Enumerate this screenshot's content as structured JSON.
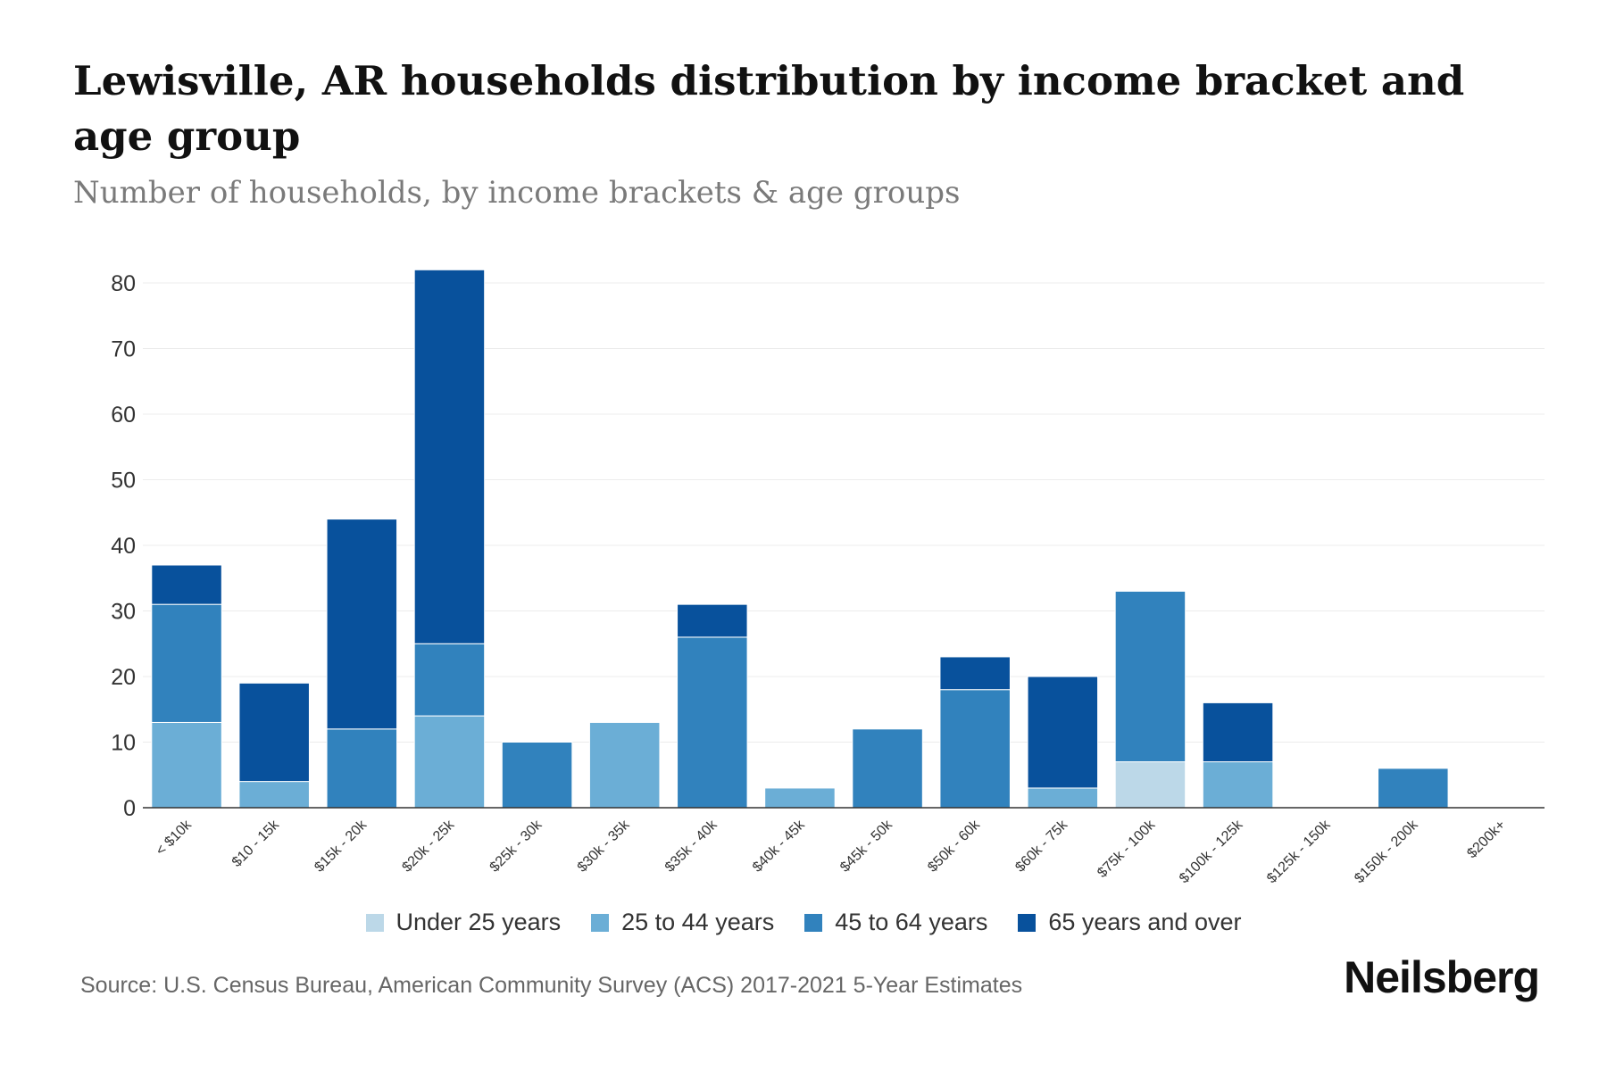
{
  "title": "Lewisville, AR households distribution by income bracket and age group",
  "subtitle": "Number of households, by income brackets & age groups",
  "source": "Source: U.S. Census Bureau, American Community Survey (ACS) 2017-2021 5-Year Estimates",
  "brand": "Neilsberg",
  "colors": {
    "under25": "#bcd8e8",
    "age25to44": "#6baed6",
    "age45to64": "#3182bd",
    "age65plus": "#08519c",
    "grid": "#ececec",
    "axis": "#333333"
  },
  "chart_data": {
    "type": "bar",
    "stacked": true,
    "title": "Lewisville, AR households distribution by income bracket and age group",
    "xlabel": "",
    "ylabel": "",
    "ylim": [
      0,
      80
    ],
    "yticks": [
      0,
      10,
      20,
      30,
      40,
      50,
      60,
      70,
      80
    ],
    "grid": true,
    "legend_position": "bottom",
    "categories": [
      "< $10k",
      "$10 - 15k",
      "$15k - 20k",
      "$20k - 25k",
      "$25k - 30k",
      "$30k - 35k",
      "$35k - 40k",
      "$40k - 45k",
      "$45k - 50k",
      "$50k - 60k",
      "$60k - 75k",
      "$75k - 100k",
      "$100k - 125k",
      "$125k - 150k",
      "$150k - 200k",
      "$200k+"
    ],
    "series": [
      {
        "name": "Under 25 years",
        "color_key": "under25",
        "values": [
          0,
          0,
          0,
          0,
          0,
          0,
          0,
          0,
          0,
          0,
          0,
          7,
          0,
          0,
          0,
          0
        ]
      },
      {
        "name": "25 to 44 years",
        "color_key": "age25to44",
        "values": [
          13,
          4,
          0,
          14,
          0,
          13,
          0,
          3,
          0,
          0,
          3,
          0,
          7,
          0,
          0,
          0
        ]
      },
      {
        "name": "45 to 64 years",
        "color_key": "age45to64",
        "values": [
          18,
          0,
          12,
          11,
          10,
          0,
          26,
          0,
          12,
          18,
          0,
          26,
          0,
          0,
          6,
          0
        ]
      },
      {
        "name": "65 years and over",
        "color_key": "age65plus",
        "values": [
          6,
          15,
          32,
          57,
          0,
          0,
          5,
          0,
          0,
          5,
          17,
          0,
          9,
          0,
          0,
          0
        ]
      }
    ]
  }
}
